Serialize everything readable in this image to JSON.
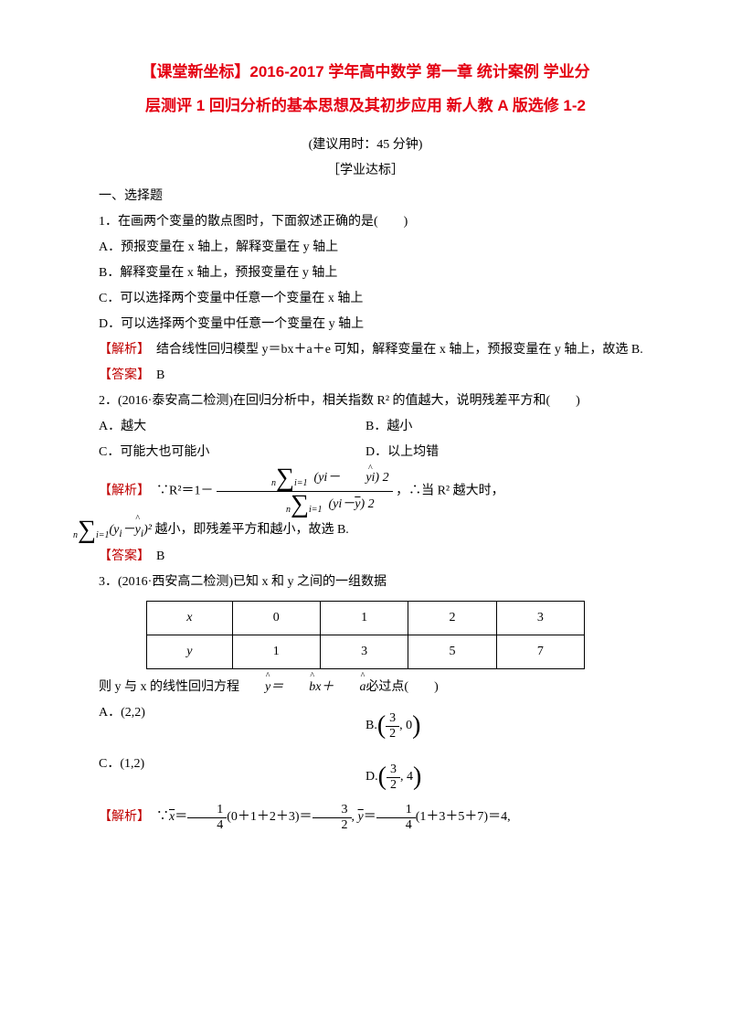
{
  "title_line1": "【课堂新坐标】2016-2017 学年高中数学 第一章 统计案例 学业分",
  "title_line2": "层测评 1 回归分析的基本思想及其初步应用 新人教 A 版选修 1-2",
  "time_hint": "(建议用时：45 分钟)",
  "level_hint": "［学业达标］",
  "sec1": "一、选择题",
  "q1": {
    "stem": "1．在画两个变量的散点图时，下面叙述正确的是(　　)",
    "A": "A．预报变量在 x 轴上，解释变量在 y 轴上",
    "B": "B．解释变量在 x 轴上，预报变量在 y 轴上",
    "C": "C．可以选择两个变量中任意一个变量在 x 轴上",
    "D": "D．可以选择两个变量中任意一个变量在 y 轴上",
    "analysis_label": "【解析】",
    "analysis": "　结合线性回归模型 y＝bx＋a＋e 可知，解释变量在 x 轴上，预报变量在 y 轴上，故选 B.",
    "answer_label": "【答案】",
    "answer": "　B"
  },
  "q2": {
    "stem": "2．(2016·泰安高二检测)在回归分析中，相关指数 R² 的值越大，说明残差平方和(　　)",
    "A": "A．越大",
    "B": "B．越小",
    "C": "C．可能大也可能小",
    "D": "D．以上均错",
    "analysis_label": "【解析】",
    "analysis_prefix": "　∵R²＝1－",
    "analysis_suffix": "，∴当 R² 越大时，",
    "line2_suffix": " 越小，即残差平方和越小，故选 B.",
    "answer_label": "【答案】",
    "answer": "　B"
  },
  "q3": {
    "stem": "3．(2016·西安高二检测)已知 x 和 y 之间的一组数据",
    "table": {
      "row_x_label": "x",
      "row_y_label": "y",
      "x": [
        "0",
        "1",
        "2",
        "3"
      ],
      "y": [
        "1",
        "3",
        "5",
        "7"
      ]
    },
    "after_table": "则 y 与 x 的线性回归方程",
    "after_table2": "必过点(　　)",
    "A": "A．(2,2)",
    "B_prefix": "B.",
    "B_frac_num": "3",
    "B_frac_den": "2",
    "B_second": "0",
    "C": "C．(1,2)",
    "D_prefix": "D.",
    "D_frac_num": "3",
    "D_frac_den": "2",
    "D_second": "4",
    "analysis_label": "【解析】",
    "analysis_prefix": "　∵",
    "eq1_lhs": "x",
    "eq1_frac_num": "1",
    "eq1_frac_den": "4",
    "eq1_paren": "(0＋1＋2＋3)＝",
    "eq1_res_num": "3",
    "eq1_res_den": "2",
    "eq2_lhs": "y",
    "eq2_frac_num": "1",
    "eq2_frac_den": "4",
    "eq2_paren": "(1＋3＋5＋7)＝4,"
  }
}
